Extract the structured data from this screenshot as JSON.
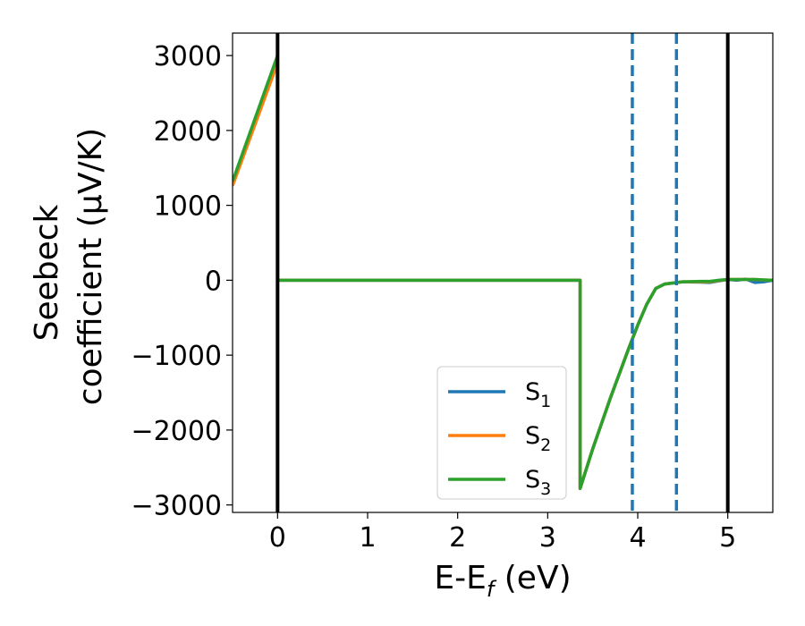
{
  "chart_data": {
    "type": "line",
    "xlabel": "E-E",
    "xlabel_sub": "f",
    "xlabel_unit": " (eV)",
    "ylabel_line1": "Seebeck",
    "ylabel_line2": "coefficient  (μV/K)",
    "xlim": [
      -0.5,
      5.5
    ],
    "ylim": [
      -3100,
      3300
    ],
    "xticks": [
      0,
      1,
      2,
      3,
      4,
      5
    ],
    "xtick_labels": [
      "0",
      "1",
      "2",
      "3",
      "4",
      "5"
    ],
    "yticks": [
      3000,
      2000,
      1000,
      0,
      -1000,
      -2000,
      -3000
    ],
    "ytick_labels": [
      "3000",
      "2000",
      "1000",
      "0",
      "−1000",
      "−2000",
      "−3000"
    ],
    "grid": false,
    "legend_placement": "lower-center",
    "series": [
      {
        "name": "S",
        "name_sub": "1",
        "color": "#1f77b4",
        "x": [
          -0.5,
          0.0,
          0.0,
          3.36,
          3.36,
          3.5,
          3.7,
          3.9,
          4.0,
          4.1,
          4.2,
          4.3,
          4.5,
          4.7,
          4.8,
          4.9,
          5.0,
          5.1,
          5.2,
          5.3,
          5.4,
          5.5
        ],
        "y": [
          1300,
          2950,
          0,
          0,
          -2780,
          -2250,
          -1560,
          -910,
          -600,
          -320,
          -110,
          -50,
          -20,
          -25,
          -30,
          -10,
          10,
          0,
          15,
          -30,
          -20,
          0
        ]
      },
      {
        "name": "S",
        "name_sub": "2",
        "color": "#ff7f0e",
        "x": [
          -0.5,
          0.0,
          0.0,
          3.36,
          3.36,
          3.5,
          3.7,
          3.9,
          4.0,
          4.1,
          4.2,
          4.3,
          4.5,
          4.7,
          4.8,
          4.9,
          5.0,
          5.1,
          5.2,
          5.3,
          5.4,
          5.5
        ],
        "y": [
          1260,
          2900,
          0,
          0,
          -2780,
          -2250,
          -1560,
          -910,
          -600,
          -320,
          -110,
          -50,
          -20,
          -20,
          -20,
          -5,
          10,
          10,
          10,
          10,
          5,
          0
        ]
      },
      {
        "name": "S",
        "name_sub": "3",
        "color": "#2ca02c",
        "x": [
          -0.5,
          0.0,
          0.0,
          3.36,
          3.36,
          3.5,
          3.7,
          3.9,
          4.0,
          4.1,
          4.2,
          4.3,
          4.5,
          4.7,
          4.8,
          4.9,
          5.0,
          5.1,
          5.2,
          5.3,
          5.4,
          5.5
        ],
        "y": [
          1320,
          3000,
          0,
          0,
          -2780,
          -2250,
          -1560,
          -910,
          -600,
          -320,
          -110,
          -50,
          -20,
          -15,
          -15,
          0,
          10,
          10,
          10,
          10,
          5,
          0
        ]
      }
    ],
    "vlines": [
      {
        "x": 0,
        "color": "#000000",
        "style": "solid"
      },
      {
        "x": 5,
        "color": "#000000",
        "style": "solid"
      },
      {
        "x": 3.94,
        "color": "#1f77b4",
        "style": "dashed"
      },
      {
        "x": 4.43,
        "color": "#1f77b4",
        "style": "dashed"
      }
    ]
  }
}
